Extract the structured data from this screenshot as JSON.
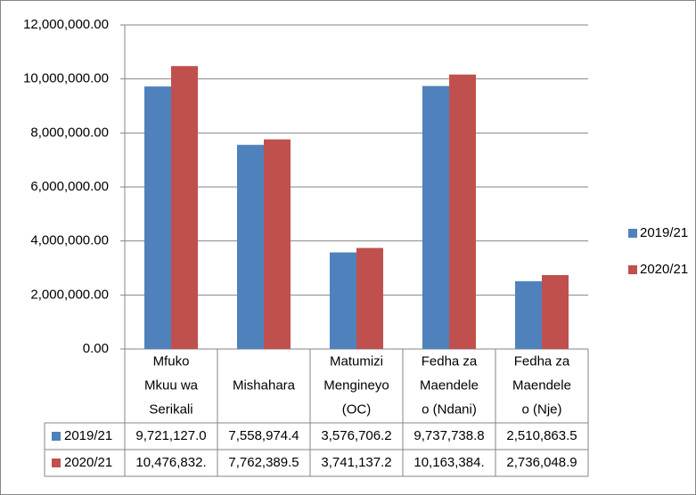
{
  "chart_data": {
    "type": "bar",
    "categories": [
      [
        "Mfuko",
        "Mkuu wa",
        "Serikali"
      ],
      [
        "Mishahara"
      ],
      [
        "Matumizi",
        "Mengineyo",
        "(OC)"
      ],
      [
        "Fedha za",
        "Maendele",
        "o (Ndani)"
      ],
      [
        "Fedha za",
        "Maendele",
        "o (Nje)"
      ]
    ],
    "series": [
      {
        "name": "2019/21",
        "color": "#4f81bd",
        "values": [
          9721127.0,
          7558974.4,
          3576706.2,
          9737738.8,
          2510863.5
        ],
        "value_labels": [
          "9,721,127.0",
          "7,558,974.4",
          "3,576,706.2",
          "9,737,738.8",
          "2,510,863.5"
        ]
      },
      {
        "name": "2020/21",
        "color": "#c0504d",
        "values": [
          10476832,
          7762389.5,
          3741137.2,
          10163384,
          2736048.9
        ],
        "value_labels": [
          "10,476,832.",
          "7,762,389.5",
          "3,741,137.2",
          "10,163,384.",
          "2,736,048.9"
        ]
      }
    ],
    "ylim": [
      0,
      12000000
    ],
    "yticks": [
      {
        "value": 0,
        "label": "0.00"
      },
      {
        "value": 2000000,
        "label": "2,000,000.00"
      },
      {
        "value": 4000000,
        "label": "4,000,000.00"
      },
      {
        "value": 6000000,
        "label": "6,000,000.00"
      },
      {
        "value": 8000000,
        "label": "8,000,000.00"
      },
      {
        "value": 10000000,
        "label": "10,000,000.00"
      },
      {
        "value": 12000000,
        "label": "12,000,000.00"
      }
    ],
    "grid": true,
    "legend": "right"
  }
}
